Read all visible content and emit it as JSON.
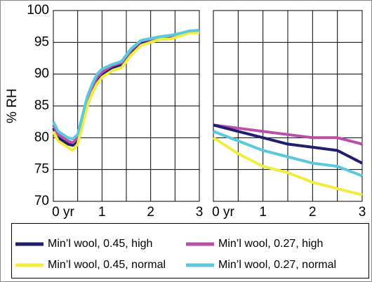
{
  "chart_data": [
    {
      "type": "line",
      "ylabel": "% RH",
      "x": [
        0,
        0.1,
        0.2,
        0.3,
        0.4,
        0.5,
        0.6,
        0.7,
        0.8,
        0.9,
        1.0,
        1.2,
        1.4,
        1.6,
        1.8,
        2.0,
        2.2,
        2.4,
        2.6,
        2.8,
        3.0
      ],
      "xlim": [
        0,
        3
      ],
      "xticks": [
        {
          "value": 0,
          "label": "0 yr"
        },
        1,
        2,
        3
      ],
      "minor_xticks": [
        0.5,
        1.5,
        2.5
      ],
      "ylim": [
        70,
        100
      ],
      "yticks": [
        70,
        75,
        80,
        85,
        90,
        95,
        100
      ],
      "grid": true,
      "series": [
        {
          "name": "Min’l wool, 0.45, high",
          "color": "#1f1f6e",
          "values": [
            81.5,
            80,
            79.5,
            79,
            78.8,
            79.5,
            82.5,
            85.5,
            87.5,
            89,
            90,
            91,
            91.5,
            93.5,
            95,
            95.3,
            95.7,
            95.8,
            96.2,
            96.6,
            96.7
          ]
        },
        {
          "name": "Min’l wool, 0.27, high",
          "color": "#b94fa8",
          "values": [
            82,
            80.5,
            80,
            79.5,
            79.2,
            80,
            83,
            86,
            88,
            89.5,
            90.3,
            91.3,
            91.8,
            93.8,
            95.2,
            95.5,
            95.8,
            96,
            96.3,
            96.7,
            96.8
          ]
        },
        {
          "name": "Min’l wool, 0.45, normal",
          "color": "#f2ec3c",
          "values": [
            81,
            79.5,
            79,
            78.5,
            78,
            79,
            82,
            85,
            87,
            88.5,
            89.5,
            90.5,
            91,
            93,
            94.5,
            95,
            95.5,
            95.5,
            96,
            96.5,
            96.5
          ]
        },
        {
          "name": "Min’l wool, 0.27, normal",
          "color": "#5bc8dc",
          "values": [
            82.5,
            81,
            80.5,
            80,
            79.8,
            80.5,
            83.5,
            86.5,
            88.5,
            90,
            90.8,
            91.5,
            92,
            94,
            95.3,
            95.6,
            95.9,
            96.1,
            96.4,
            96.8,
            96.9
          ]
        }
      ]
    },
    {
      "type": "line",
      "x": [
        0,
        0.5,
        1,
        1.5,
        2,
        2.5,
        3
      ],
      "xlim": [
        0,
        3
      ],
      "xticks": [
        {
          "value": 0,
          "label": "0 yr"
        },
        1,
        2,
        3
      ],
      "minor_xticks": [
        0.5,
        1.5,
        2.5
      ],
      "ylim": [
        70,
        100
      ],
      "yticks": [
        70,
        75,
        80,
        85,
        90,
        95,
        100
      ],
      "grid": true,
      "series": [
        {
          "color": "#b94fa8",
          "values": [
            82,
            81.5,
            81,
            80.5,
            80,
            80,
            79
          ]
        },
        {
          "color": "#1f1f6e",
          "values": [
            82,
            81,
            80,
            79,
            78.5,
            78,
            76
          ]
        },
        {
          "color": "#5bc8dc",
          "values": [
            81,
            79.5,
            78,
            77,
            76,
            75.5,
            74
          ]
        },
        {
          "color": "#f2ec3c",
          "values": [
            80,
            77.5,
            75.5,
            74.5,
            73,
            72,
            71
          ]
        }
      ]
    }
  ]
}
